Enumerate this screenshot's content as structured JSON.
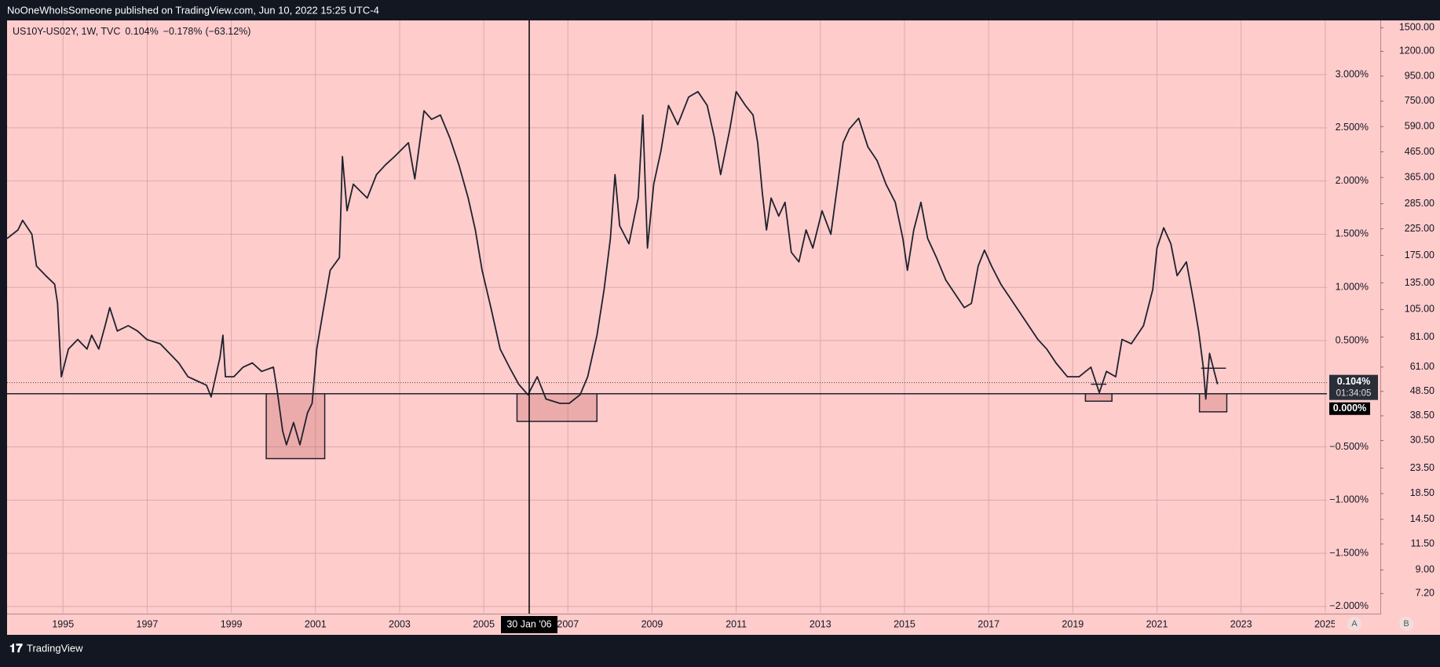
{
  "chart_data": {
    "type": "line",
    "header": "NoOneWhoIsSomeone published on TradingView.com, Jun 10, 2022 15:25 UTC-4",
    "legend": {
      "last": "0.104%",
      "change": "−0.178%",
      "change_pct": "(−63.12%)"
    },
    "x": [
      1993.67,
      1993.93,
      1994.04,
      1994.26,
      1994.37,
      1994.59,
      1994.8,
      1994.87,
      1994.96,
      1995.13,
      1995.35,
      1995.57,
      1995.68,
      1995.85,
      1996.0,
      1996.11,
      1996.29,
      1996.55,
      1996.77,
      1996.99,
      1997.31,
      1997.53,
      1997.75,
      1997.97,
      1998.19,
      1998.41,
      1998.52,
      1998.73,
      1998.8,
      1998.86,
      1999.06,
      1999.28,
      1999.5,
      1999.72,
      2000.0,
      2000.09,
      2000.22,
      2000.31,
      2000.48,
      2000.63,
      2000.81,
      2000.92,
      2001.03,
      2001.18,
      2001.35,
      2001.57,
      2001.64,
      2001.75,
      2001.9,
      2002.23,
      2002.45,
      2002.66,
      2002.88,
      2003.21,
      2003.36,
      2003.58,
      2003.76,
      2003.97,
      2004.19,
      2004.41,
      2004.63,
      2004.8,
      2004.96,
      2005.17,
      2005.39,
      2005.61,
      2005.83,
      2006.05,
      2006.27,
      2006.48,
      2006.81,
      2007.03,
      2007.29,
      2007.47,
      2007.69,
      2007.86,
      2008.01,
      2008.12,
      2008.23,
      2008.45,
      2008.67,
      2008.78,
      2008.89,
      2009.04,
      2009.21,
      2009.39,
      2009.61,
      2009.87,
      2010.09,
      2010.31,
      2010.48,
      2010.63,
      2010.85,
      2011.0,
      2011.22,
      2011.4,
      2011.51,
      2011.62,
      2011.72,
      2011.83,
      2012.01,
      2012.16,
      2012.31,
      2012.49,
      2012.66,
      2012.82,
      2013.04,
      2013.25,
      2013.41,
      2013.54,
      2013.69,
      2013.91,
      2014.13,
      2014.35,
      2014.56,
      2014.78,
      2014.96,
      2015.07,
      2015.22,
      2015.39,
      2015.55,
      2015.76,
      2015.98,
      2016.2,
      2016.42,
      2016.59,
      2016.75,
      2016.9,
      2017.07,
      2017.29,
      2017.51,
      2017.73,
      2017.95,
      2018.17,
      2018.38,
      2018.6,
      2018.87,
      2019.15,
      2019.43,
      2019.63,
      2019.8,
      2020.02,
      2020.17,
      2020.39,
      2020.68,
      2020.9,
      2021.0,
      2021.16,
      2021.33,
      2021.48,
      2021.7,
      2021.88,
      2021.99,
      2022.1,
      2022.16,
      2022.25,
      2022.36,
      2022.44
    ],
    "series": [
      {
        "name": "US10Y-US02Y, 1W, TVC",
        "color": "#1e222d",
        "values": [
          1.46,
          1.54,
          1.63,
          1.5,
          1.2,
          1.11,
          1.03,
          0.85,
          0.16,
          0.42,
          0.51,
          0.42,
          0.55,
          0.42,
          0.64,
          0.81,
          0.59,
          0.64,
          0.59,
          0.51,
          0.47,
          0.38,
          0.29,
          0.16,
          0.12,
          0.08,
          -0.03,
          0.34,
          0.55,
          0.16,
          0.16,
          0.25,
          0.29,
          0.21,
          0.25,
          0.03,
          -0.35,
          -0.48,
          -0.27,
          -0.48,
          -0.18,
          -0.09,
          0.42,
          0.77,
          1.16,
          1.28,
          2.23,
          1.72,
          1.97,
          1.84,
          2.06,
          2.15,
          2.23,
          2.36,
          2.02,
          2.66,
          2.58,
          2.62,
          2.41,
          2.15,
          1.84,
          1.54,
          1.16,
          0.81,
          0.42,
          0.25,
          0.09,
          -0.01,
          0.16,
          -0.05,
          -0.09,
          -0.09,
          -0.01,
          0.16,
          0.55,
          0.98,
          1.46,
          2.06,
          1.58,
          1.41,
          1.84,
          2.62,
          1.37,
          1.97,
          2.28,
          2.71,
          2.53,
          2.79,
          2.84,
          2.71,
          2.41,
          2.06,
          2.49,
          2.84,
          2.71,
          2.62,
          2.36,
          1.89,
          1.54,
          1.84,
          1.67,
          1.8,
          1.33,
          1.24,
          1.54,
          1.37,
          1.72,
          1.5,
          1.97,
          2.36,
          2.49,
          2.59,
          2.32,
          2.19,
          1.97,
          1.8,
          1.46,
          1.16,
          1.54,
          1.8,
          1.46,
          1.28,
          1.07,
          0.94,
          0.81,
          0.85,
          1.2,
          1.35,
          1.2,
          1.03,
          0.9,
          0.77,
          0.64,
          0.51,
          0.42,
          0.29,
          0.16,
          0.16,
          0.25,
          0.01,
          0.21,
          0.16,
          0.51,
          0.47,
          0.64,
          0.98,
          1.37,
          1.56,
          1.41,
          1.11,
          1.24,
          0.85,
          0.59,
          0.25,
          -0.05,
          0.38,
          0.21,
          0.09
        ]
      }
    ],
    "xlim": [
      1993.67,
      2025.04
    ],
    "xticks": [
      1995,
      1997,
      1999,
      2001,
      2003,
      2005,
      2007,
      2009,
      2011,
      2013,
      2015,
      2017,
      2019,
      2021,
      2023,
      2025
    ],
    "ylim": [
      -2.06,
      3.51
    ],
    "yticks": [
      {
        "value": 3,
        "label": "3.000%"
      },
      {
        "value": 2.5,
        "label": "2.500%"
      },
      {
        "value": 2,
        "label": "2.000%"
      },
      {
        "value": 1.5,
        "label": "1.500%"
      },
      {
        "value": 1,
        "label": "1.000%"
      },
      {
        "value": 0.5,
        "label": "0.500%"
      },
      {
        "value": -0.5,
        "label": "−0.500%"
      },
      {
        "value": -1,
        "label": "−1.000%"
      },
      {
        "value": -1.5,
        "label": "−1.500%"
      },
      {
        "value": -2,
        "label": "−2.000%"
      }
    ],
    "y2lim": [
      6.0,
      1607
    ],
    "y2_log": true,
    "y2ticks": [
      {
        "value": 1500,
        "label": "1500.00"
      },
      {
        "value": 1200,
        "label": "1200.00"
      },
      {
        "value": 950,
        "label": "950.00"
      },
      {
        "value": 750,
        "label": "750.00"
      },
      {
        "value": 590,
        "label": "590.00"
      },
      {
        "value": 465,
        "label": "465.00"
      },
      {
        "value": 365,
        "label": "365.00"
      },
      {
        "value": 285,
        "label": "285.00"
      },
      {
        "value": 225,
        "label": "225.00"
      },
      {
        "value": 175,
        "label": "175.00"
      },
      {
        "value": 135,
        "label": "135.00"
      },
      {
        "value": 105,
        "label": "105.00"
      },
      {
        "value": 81,
        "label": "81.00"
      },
      {
        "value": 61,
        "label": "61.00"
      },
      {
        "value": 48.5,
        "label": "48.50"
      },
      {
        "value": 38.5,
        "label": "38.50"
      },
      {
        "value": 30.5,
        "label": "30.50"
      },
      {
        "value": 23.5,
        "label": "23.50"
      },
      {
        "value": 18.5,
        "label": "18.50"
      },
      {
        "value": 14.5,
        "label": "14.50"
      },
      {
        "value": 11.5,
        "label": "11.50"
      },
      {
        "value": 9,
        "label": "9.00"
      },
      {
        "value": 7.2,
        "label": "7.20"
      }
    ],
    "grid": true,
    "hline": {
      "value": 0,
      "label": "0.000%"
    },
    "last_price": {
      "value": 0.104,
      "label": "0.104%",
      "countdown": "01:34:05"
    },
    "crosshair": {
      "x": 2006.08,
      "label": "30 Jan '06"
    },
    "boxes": [
      {
        "x": [
          1999.83,
          2001.22
        ],
        "values": [
          0,
          -0.61
        ]
      },
      {
        "x": [
          2005.79,
          2007.69
        ],
        "values": [
          0,
          -0.26
        ]
      },
      {
        "x": [
          2019.3,
          2019.93
        ],
        "values": [
          0,
          -0.07
        ]
      },
      {
        "x": [
          2022.01,
          2022.66
        ],
        "values": [
          0,
          -0.17
        ]
      }
    ],
    "segments": [
      {
        "x": [
          2019.43,
          2019.8
        ],
        "value": 0.09
      },
      {
        "x": [
          2022.05,
          2022.64
        ],
        "value": 0.24
      }
    ],
    "buttons": [
      "A",
      "B"
    ]
  },
  "footer": {
    "brand": "TradingView"
  }
}
